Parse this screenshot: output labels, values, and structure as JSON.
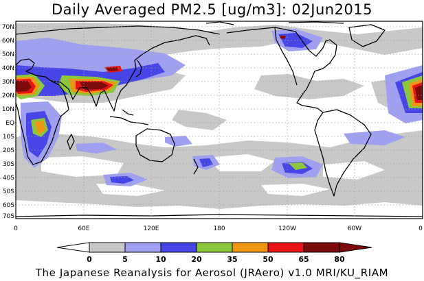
{
  "title": "Daily Averaged PM2.5 [ug/m3]: 02Jun2015",
  "footer": "The Japanese Reanalysis for Aerosol (JRAero) v1.0 MRI/KU_RIAM",
  "map": {
    "lat_labels": [
      "70N",
      "60N",
      "50N",
      "40N",
      "30N",
      "20N",
      "10N",
      "EQ",
      "10S",
      "20S",
      "30S",
      "40S",
      "50S",
      "60S",
      "70S"
    ],
    "lon_labels": [
      "0",
      "60E",
      "120E",
      "180",
      "120W",
      "60W",
      "0"
    ]
  },
  "colorbar": {
    "levels": [
      "0",
      "5",
      "10",
      "20",
      "35",
      "50",
      "65",
      "80"
    ],
    "colors": [
      "#ffffff",
      "#c8c8c8",
      "#a0a0f0",
      "#4646e6",
      "#8cc83c",
      "#f09614",
      "#e61414",
      "#7d0a0a"
    ]
  }
}
